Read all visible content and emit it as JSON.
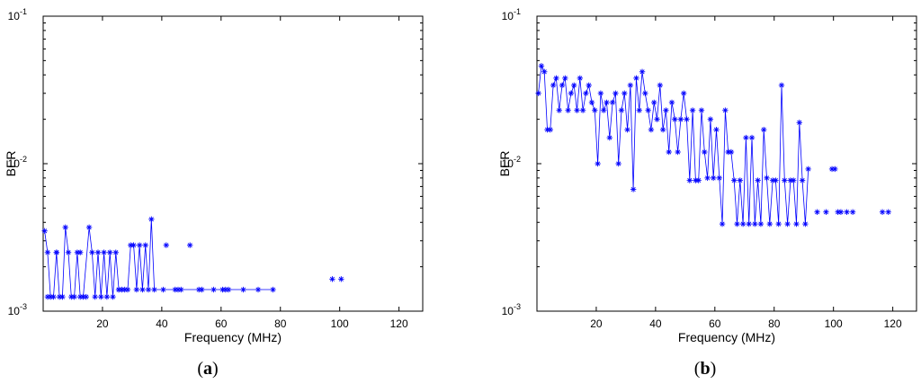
{
  "colors": {
    "series": "#0000ff",
    "axes": "#000000",
    "background": "#ffffff"
  },
  "chart_data": [
    {
      "type": "line",
      "marker": "asterisk",
      "caption": {
        "open": "(",
        "letter": "a",
        "close": ")"
      },
      "xlabel": "Frequency (MHz)",
      "ylabel": "BER",
      "xlim": [
        0,
        128
      ],
      "ylim": [
        0.001,
        0.1
      ],
      "yscale": "log",
      "xticks": [
        20,
        40,
        60,
        80,
        100,
        120
      ],
      "xtick_labels": [
        "20",
        "40",
        "60",
        "80",
        "100",
        "120"
      ],
      "yticks": [
        0.001,
        0.01,
        0.1
      ],
      "ytick_labels": [
        {
          "base": "10",
          "exp": "-3"
        },
        {
          "base": "10",
          "exp": "-2"
        },
        {
          "base": "10",
          "exp": "-1"
        }
      ],
      "grid": false,
      "series": [
        {
          "x": [
            0.5,
            1.5,
            2.5,
            3.5,
            4.5,
            5.5,
            6.5,
            7.5,
            8.5,
            9.5,
            10.5,
            11.5,
            12.5,
            13.5,
            15.5,
            16.5,
            17.5,
            18.5,
            19.5,
            20.5,
            21.5,
            22.5,
            23.5,
            24.5,
            25.5,
            26.5,
            27.5,
            28.5,
            29.5,
            30.5,
            31.5,
            32.5,
            33.5,
            34.5,
            35.5,
            36.5,
            37.5,
            40.5,
            44.5,
            45.5,
            46.5,
            52.5,
            53.5,
            57.5,
            60.5,
            61.5,
            62.5,
            67.5,
            72.5,
            77.5
          ],
          "y": [
            0.0035,
            0.0025,
            0.00125,
            0.00125,
            0.0025,
            0.00125,
            0.00125,
            0.0037,
            0.0025,
            0.00125,
            0.00125,
            0.0025,
            0.00125,
            0.00125,
            0.0037,
            0.0025,
            0.00125,
            0.0025,
            0.00125,
            0.0025,
            0.00125,
            0.0025,
            0.00125,
            0.0025,
            0.0014,
            0.0014,
            0.0014,
            0.0014,
            0.0028,
            0.0028,
            0.0014,
            0.0028,
            0.0014,
            0.0028,
            0.0014,
            0.0042,
            0.0014,
            0.0014,
            0.0014,
            0.0014,
            0.0014,
            0.0014,
            0.0014,
            0.0014,
            0.0014,
            0.0014,
            0.0014,
            0.0014,
            0.0014,
            0.0014
          ]
        }
      ],
      "isolated_points": {
        "x": [
          1.5,
          4.5,
          12.5,
          14.5,
          25.5,
          41.5,
          49.5,
          97.5,
          100.5
        ],
        "y": [
          0.00125,
          0.0025,
          0.0025,
          0.00125,
          0.0014,
          0.0028,
          0.0028,
          0.00165,
          0.00165
        ]
      }
    },
    {
      "type": "line",
      "marker": "asterisk",
      "caption": {
        "open": "(",
        "letter": "b",
        "close": ")"
      },
      "xlabel": "Frequency (MHz)",
      "ylabel": "BER",
      "xlim": [
        0,
        128
      ],
      "ylim": [
        0.001,
        0.1
      ],
      "yscale": "log",
      "xticks": [
        20,
        40,
        60,
        80,
        100,
        120
      ],
      "xtick_labels": [
        "20",
        "40",
        "60",
        "80",
        "100",
        "120"
      ],
      "yticks": [
        0.001,
        0.01,
        0.1
      ],
      "ytick_labels": [
        {
          "base": "10",
          "exp": "-3"
        },
        {
          "base": "10",
          "exp": "-2"
        },
        {
          "base": "10",
          "exp": "-1"
        }
      ],
      "grid": false,
      "series": [
        {
          "x": [
            0.5,
            1.5,
            2.5,
            3.5,
            4.5,
            5.5,
            6.5,
            7.5,
            8.5,
            9.5,
            10.5,
            11.5,
            12.5,
            13.5,
            14.5,
            15.5,
            16.5,
            17.5,
            18.5,
            19.5,
            20.5,
            21.5,
            22.5,
            23.5,
            24.5,
            25.5,
            26.5,
            27.5,
            28.5,
            29.5,
            30.5,
            31.5,
            32.5,
            33.5,
            34.5,
            35.5,
            36.5,
            37.5,
            38.5,
            39.5,
            40.5,
            41.5,
            42.5,
            43.5,
            44.5,
            45.5,
            46.5,
            47.5,
            48.5,
            49.5,
            50.5,
            51.5,
            52.5,
            53.5,
            54.5,
            55.5,
            56.5,
            57.5,
            58.5,
            59.5,
            60.5,
            61.5,
            62.5,
            63.5,
            64.5,
            65.5,
            66.5,
            67.5,
            68.5,
            69.5,
            70.5,
            71.5,
            72.5,
            73.5,
            74.5,
            75.5,
            76.5,
            77.5,
            78.5,
            79.5,
            80.5,
            81.5,
            82.5,
            83.5,
            84.5,
            85.5,
            86.5,
            87.5,
            88.5,
            89.5,
            90.5,
            91.5
          ],
          "y": [
            0.03,
            0.046,
            0.042,
            0.017,
            0.017,
            0.034,
            0.038,
            0.023,
            0.034,
            0.038,
            0.023,
            0.03,
            0.034,
            0.023,
            0.038,
            0.023,
            0.03,
            0.034,
            0.026,
            0.023,
            0.01,
            0.03,
            0.023,
            0.026,
            0.015,
            0.026,
            0.03,
            0.01,
            0.023,
            0.03,
            0.017,
            0.034,
            0.0067,
            0.038,
            0.023,
            0.042,
            0.03,
            0.023,
            0.017,
            0.026,
            0.02,
            0.034,
            0.017,
            0.023,
            0.012,
            0.026,
            0.02,
            0.012,
            0.02,
            0.03,
            0.02,
            0.0077,
            0.023,
            0.0077,
            0.0077,
            0.023,
            0.012,
            0.008,
            0.02,
            0.008,
            0.017,
            0.008,
            0.0039,
            0.023,
            0.012,
            0.012,
            0.0077,
            0.0039,
            0.0077,
            0.0039,
            0.015,
            0.0039,
            0.015,
            0.0039,
            0.0077,
            0.0039,
            0.017,
            0.008,
            0.0039,
            0.0077,
            0.0077,
            0.0039,
            0.034,
            0.0077,
            0.0039,
            0.0077,
            0.0077,
            0.0039,
            0.019,
            0.0077,
            0.0039,
            0.0092
          ]
        }
      ],
      "isolated_points": {
        "x": [
          94.5,
          97.5,
          99.5,
          100.5,
          101.5,
          102.5,
          104.5,
          106.5,
          116.5,
          118.5
        ],
        "y": [
          0.0047,
          0.0047,
          0.0092,
          0.0092,
          0.0047,
          0.0047,
          0.0047,
          0.0047,
          0.0047,
          0.0047
        ]
      }
    }
  ]
}
